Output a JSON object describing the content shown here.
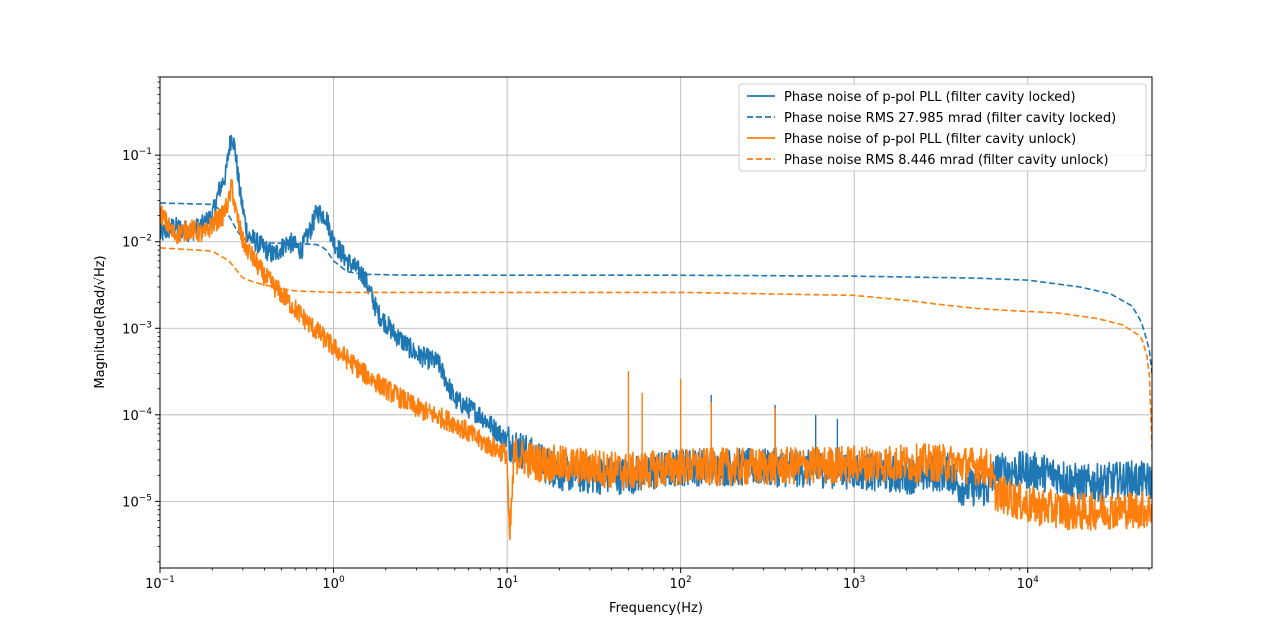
{
  "chart_data": {
    "type": "line",
    "xlabel": "Frequency(Hz)",
    "ylabel": "Magnitude(Rad/√Hz)",
    "x_scale": "log",
    "y_scale": "log",
    "xlim": [
      0.1,
      52000
    ],
    "ylim": [
      1.7e-06,
      0.8
    ],
    "grid": true,
    "legend_position": "upper right",
    "x_ticks": [
      {
        "value": 0.1,
        "base": "10",
        "exp": "−1"
      },
      {
        "value": 1,
        "base": "10",
        "exp": "0"
      },
      {
        "value": 10,
        "base": "10",
        "exp": "1"
      },
      {
        "value": 100,
        "base": "10",
        "exp": "2"
      },
      {
        "value": 1000,
        "base": "10",
        "exp": "3"
      },
      {
        "value": 10000,
        "base": "10",
        "exp": "4"
      }
    ],
    "y_ticks": [
      {
        "value": 1e-05,
        "base": "10",
        "exp": "−5"
      },
      {
        "value": 0.0001,
        "base": "10",
        "exp": "−4"
      },
      {
        "value": 0.001,
        "base": "10",
        "exp": "−3"
      },
      {
        "value": 0.01,
        "base": "10",
        "exp": "−2"
      },
      {
        "value": 0.1,
        "base": "10",
        "exp": "−1"
      }
    ],
    "series": [
      {
        "name": "Phase noise of p-pol PLL (filter cavity locked)",
        "color": "#1f77b4",
        "style": "solid",
        "points": [
          [
            0.1,
            0.012
          ],
          [
            0.12,
            0.015
          ],
          [
            0.15,
            0.013
          ],
          [
            0.18,
            0.016
          ],
          [
            0.2,
            0.02
          ],
          [
            0.22,
            0.04
          ],
          [
            0.24,
            0.06
          ],
          [
            0.25,
            0.12
          ],
          [
            0.26,
            0.175
          ],
          [
            0.27,
            0.12
          ],
          [
            0.29,
            0.035
          ],
          [
            0.32,
            0.012
          ],
          [
            0.38,
            0.009
          ],
          [
            0.45,
            0.007
          ],
          [
            0.55,
            0.01
          ],
          [
            0.65,
            0.008
          ],
          [
            0.75,
            0.015
          ],
          [
            0.8,
            0.022
          ],
          [
            0.9,
            0.02
          ],
          [
            1.0,
            0.01
          ],
          [
            1.2,
            0.006
          ],
          [
            1.5,
            0.004
          ],
          [
            1.8,
            0.0015
          ],
          [
            2.2,
            0.0009
          ],
          [
            3,
            0.0005
          ],
          [
            4,
            0.0004
          ],
          [
            5,
            0.00015
          ],
          [
            7,
            0.0001
          ],
          [
            10,
            5e-05
          ],
          [
            15,
            3e-05
          ],
          [
            20,
            2.2e-05
          ],
          [
            30,
            2e-05
          ],
          [
            50,
            2e-05
          ],
          [
            70,
            2.2e-05
          ],
          [
            100,
            2.5e-05
          ],
          [
            200,
            2.5e-05
          ],
          [
            500,
            2.4e-05
          ],
          [
            1000,
            2.3e-05
          ],
          [
            2000,
            2e-05
          ],
          [
            3500,
            2.2e-05
          ],
          [
            4000,
            1.5e-05
          ],
          [
            6000,
            1.4e-05
          ],
          [
            6500,
            2.2e-05
          ],
          [
            10000,
            2.3e-05
          ],
          [
            15000,
            2e-05
          ],
          [
            20000,
            1.6e-05
          ],
          [
            30000,
            1.7e-05
          ],
          [
            40000,
            1.8e-05
          ],
          [
            52000,
            1.7e-05
          ]
        ]
      },
      {
        "name": "Phase noise RMS 27.985 mrad (filter cavity locked)",
        "color": "#1f77b4",
        "style": "dashed",
        "points": [
          [
            0.1,
            0.028
          ],
          [
            0.2,
            0.027
          ],
          [
            0.25,
            0.02
          ],
          [
            0.28,
            0.013
          ],
          [
            0.32,
            0.0098
          ],
          [
            0.5,
            0.0096
          ],
          [
            0.8,
            0.0093
          ],
          [
            0.9,
            0.0082
          ],
          [
            1.0,
            0.006
          ],
          [
            1.2,
            0.0045
          ],
          [
            1.5,
            0.0042
          ],
          [
            3,
            0.0041
          ],
          [
            10,
            0.0041
          ],
          [
            100,
            0.0041
          ],
          [
            1000,
            0.004
          ],
          [
            5000,
            0.0038
          ],
          [
            10000,
            0.0036
          ],
          [
            20000,
            0.003
          ],
          [
            30000,
            0.0025
          ],
          [
            40000,
            0.0018
          ],
          [
            45000,
            0.0012
          ],
          [
            50000,
            0.0006
          ],
          [
            52000,
            0.0003
          ]
        ]
      },
      {
        "name": "Phase noise of p-pol PLL (filter cavity unlock)",
        "color": "#ff7f0e",
        "style": "solid",
        "points": [
          [
            0.1,
            0.022
          ],
          [
            0.12,
            0.012
          ],
          [
            0.15,
            0.014
          ],
          [
            0.18,
            0.012
          ],
          [
            0.2,
            0.016
          ],
          [
            0.23,
            0.02
          ],
          [
            0.25,
            0.03
          ],
          [
            0.26,
            0.045
          ],
          [
            0.27,
            0.025
          ],
          [
            0.3,
            0.01
          ],
          [
            0.4,
            0.004
          ],
          [
            0.5,
            0.0025
          ],
          [
            0.7,
            0.0012
          ],
          [
            1.0,
            0.0006
          ],
          [
            1.5,
            0.0003
          ],
          [
            2,
            0.0002
          ],
          [
            3,
            0.00012
          ],
          [
            5,
            8e-05
          ],
          [
            7,
            5e-05
          ],
          [
            10,
            3.5e-05
          ],
          [
            10.3,
            3e-06
          ],
          [
            11,
            3.5e-05
          ],
          [
            15,
            2.8e-05
          ],
          [
            30,
            2.5e-05
          ],
          [
            50,
            2.2e-05
          ],
          [
            100,
            2.5e-05
          ],
          [
            300,
            2.5e-05
          ],
          [
            1000,
            2.7e-05
          ],
          [
            3000,
            2.8e-05
          ],
          [
            6000,
            2.5e-05
          ],
          [
            6500,
            1.3e-05
          ],
          [
            10000,
            9e-06
          ],
          [
            20000,
            7.5e-06
          ],
          [
            30000,
            8e-06
          ],
          [
            52000,
            8e-06
          ]
        ]
      },
      {
        "name": "Phase noise RMS 8.446 mrad (filter cavity unlock)",
        "color": "#ff7f0e",
        "style": "dashed",
        "points": [
          [
            0.1,
            0.0085
          ],
          [
            0.2,
            0.0078
          ],
          [
            0.25,
            0.006
          ],
          [
            0.3,
            0.0038
          ],
          [
            0.35,
            0.0034
          ],
          [
            0.45,
            0.003
          ],
          [
            0.6,
            0.0027
          ],
          [
            1.0,
            0.0026
          ],
          [
            10,
            0.0026
          ],
          [
            100,
            0.0026
          ],
          [
            1000,
            0.0024
          ],
          [
            2000,
            0.0021
          ],
          [
            3000,
            0.0019
          ],
          [
            5000,
            0.0017
          ],
          [
            8000,
            0.0016
          ],
          [
            15000,
            0.0015
          ],
          [
            25000,
            0.0013
          ],
          [
            35000,
            0.0011
          ],
          [
            45000,
            0.0008
          ],
          [
            50000,
            0.0004
          ],
          [
            52000,
            4e-05
          ]
        ]
      }
    ],
    "spikes": {
      "unlock": [
        [
          50,
          0.00032
        ],
        [
          60,
          0.00018
        ],
        [
          100,
          0.00026
        ],
        [
          150,
          0.00014
        ],
        [
          350,
          0.00012
        ]
      ],
      "locked": [
        [
          150,
          0.00017
        ],
        [
          350,
          0.00013
        ],
        [
          600,
          0.0001
        ],
        [
          800,
          9e-05
        ]
      ]
    }
  }
}
